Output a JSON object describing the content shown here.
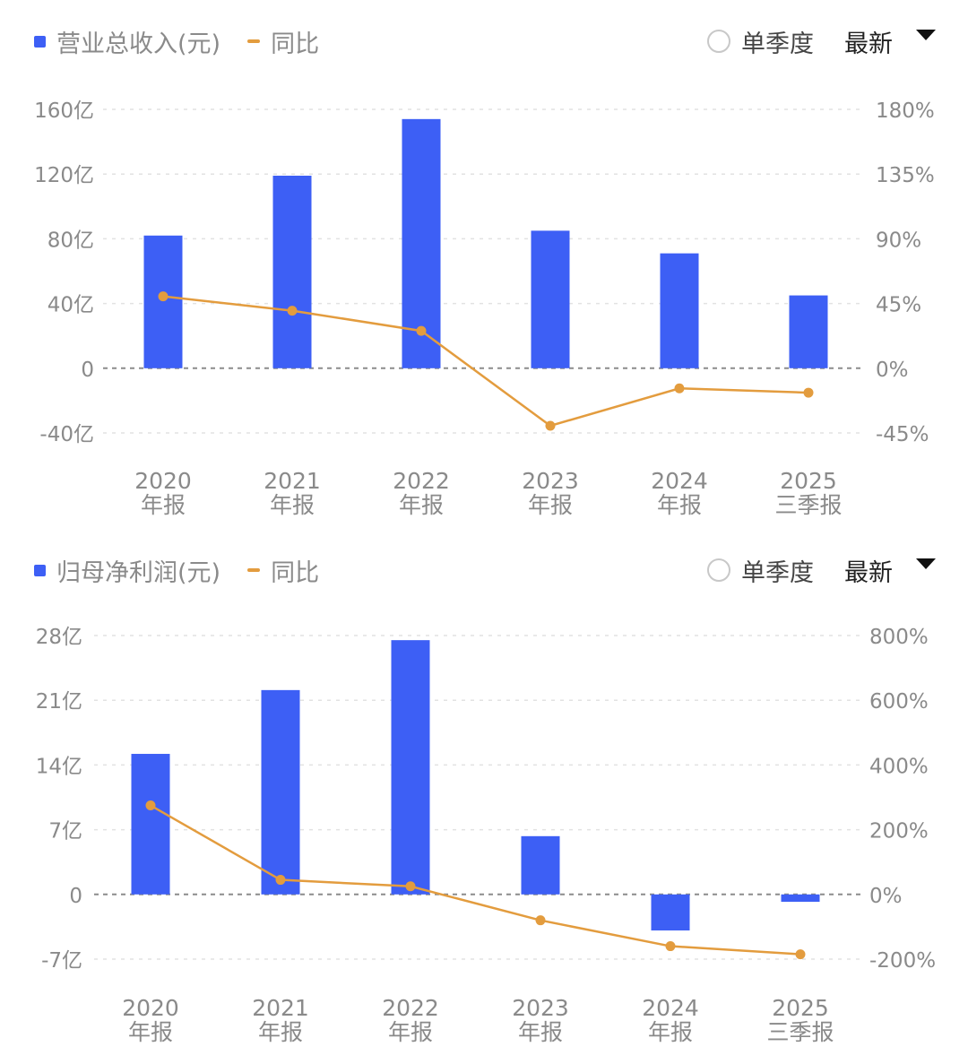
{
  "panels": [
    {
      "legend": {
        "bar_label": "营业总收入(元)",
        "line_label": "同比"
      },
      "controls": {
        "radio_label": "单季度",
        "select_value": "最新"
      }
    },
    {
      "legend": {
        "bar_label": "归母净利润(元)",
        "line_label": "同比"
      },
      "controls": {
        "radio_label": "单季度",
        "select_value": "最新"
      }
    }
  ],
  "colors": {
    "bar": "#3D5FF5",
    "line": "#E39C3E",
    "axis_text": "#8a8a8a"
  },
  "chart_data": [
    {
      "type": "bar",
      "categories": [
        [
          "2020",
          "年报"
        ],
        [
          "2021",
          "年报"
        ],
        [
          "2022",
          "年报"
        ],
        [
          "2023",
          "年报"
        ],
        [
          "2024",
          "年报"
        ],
        [
          "2025",
          "三季报"
        ]
      ],
      "series": [
        {
          "name": "营业总收入(元)",
          "type": "bar",
          "axis": "left",
          "values": [
            82,
            119,
            154,
            85,
            71,
            45
          ]
        },
        {
          "name": "同比",
          "type": "line",
          "axis": "right",
          "values": [
            50,
            40,
            26,
            -40,
            -14,
            -17
          ]
        }
      ],
      "left_axis": {
        "min": -40,
        "max": 160,
        "ticks": [
          160,
          120,
          80,
          40,
          0,
          -40
        ],
        "tick_labels": [
          "160亿",
          "120亿",
          "80亿",
          "40亿",
          "0",
          "-40亿"
        ]
      },
      "right_axis": {
        "min": -45,
        "max": 180,
        "tick_labels": [
          "180%",
          "135%",
          "90%",
          "45%",
          "0%",
          "-45%"
        ]
      },
      "grid": true
    },
    {
      "type": "bar",
      "categories": [
        [
          "2020",
          "年报"
        ],
        [
          "2021",
          "年报"
        ],
        [
          "2022",
          "年报"
        ],
        [
          "2023",
          "年报"
        ],
        [
          "2024",
          "年报"
        ],
        [
          "2025",
          "三季报"
        ]
      ],
      "series": [
        {
          "name": "归母净利润(元)",
          "type": "bar",
          "axis": "left",
          "values": [
            15.2,
            22.1,
            27.5,
            6.3,
            -3.9,
            -0.8
          ]
        },
        {
          "name": "同比",
          "type": "line",
          "axis": "right",
          "values": [
            275,
            45,
            25,
            -80,
            -160,
            -185
          ]
        }
      ],
      "left_axis": {
        "min": -7,
        "max": 28,
        "ticks": [
          28,
          21,
          14,
          7,
          0,
          -7
        ],
        "tick_labels": [
          "28亿",
          "21亿",
          "14亿",
          "7亿",
          "0",
          "-7亿"
        ]
      },
      "right_axis": {
        "min": -200,
        "max": 800,
        "tick_labels": [
          "800%",
          "600%",
          "400%",
          "200%",
          "0%",
          "-200%"
        ]
      },
      "grid": true
    }
  ]
}
